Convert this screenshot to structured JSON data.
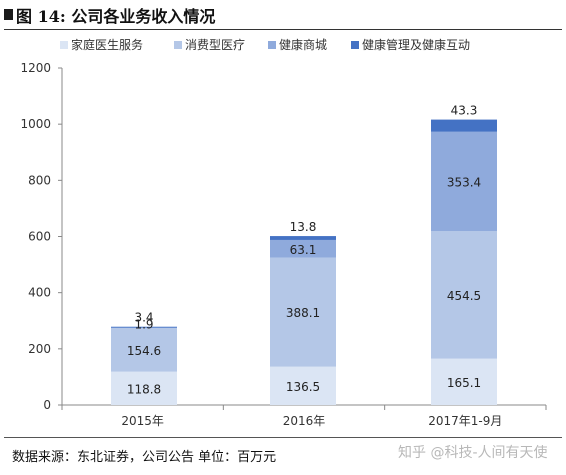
{
  "page": {
    "title": "图 14:  公司各业务收入情况",
    "footer": "数据来源：东北证券，公司公告  单位：百万元",
    "watermark": "知乎 @科技-人间有天使"
  },
  "chart_data": {
    "type": "bar",
    "stacked": true,
    "categories": [
      "2015年",
      "2016年",
      "2017年1-9月"
    ],
    "series": [
      {
        "name": "家庭医生服务",
        "values": [
          118.8,
          136.5,
          165.1
        ],
        "color": "#dbe5f4"
      },
      {
        "name": "消费型医疗",
        "values": [
          154.6,
          388.1,
          454.5
        ],
        "color": "#b4c7e7"
      },
      {
        "name": "健康商城",
        "values": [
          1.9,
          63.1,
          353.4
        ],
        "color": "#8faadc"
      },
      {
        "name": "健康管理及健康互动",
        "values": [
          3.4,
          13.8,
          43.3
        ],
        "color": "#4472c4"
      }
    ],
    "ylim": [
      0,
      1200
    ],
    "yticks": [
      "0",
      "200",
      "400",
      "600",
      "800",
      "1000",
      "1200"
    ],
    "legend_position": "top",
    "grid": false
  }
}
